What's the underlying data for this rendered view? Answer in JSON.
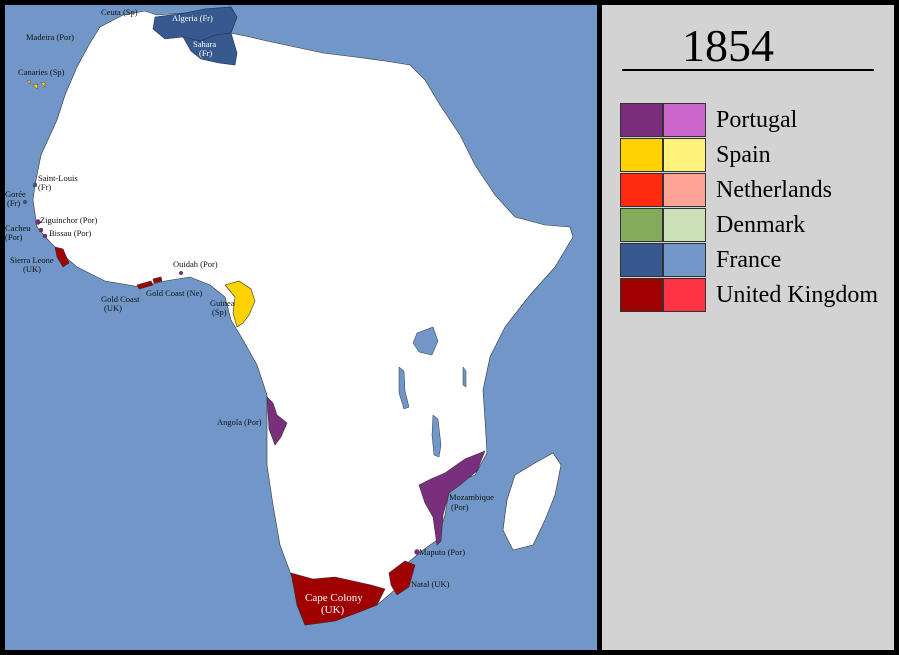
{
  "title": "1854",
  "legend": [
    {
      "name": "Portugal",
      "dark": "#7a2f7e",
      "light": "#cc66cc"
    },
    {
      "name": "Spain",
      "dark": "#ffd200",
      "light": "#fff27a"
    },
    {
      "name": "Netherlands",
      "dark": "#ff2a0f",
      "light": "#ffa494"
    },
    {
      "name": "Denmark",
      "dark": "#82ab5c",
      "light": "#cbe0b6"
    },
    {
      "name": "France",
      "dark": "#37598f",
      "light": "#7197c8"
    },
    {
      "name": "United Kingdom",
      "dark": "#a00000",
      "light": "#ff3344"
    }
  ],
  "colors": {
    "ocean": "#7197c8",
    "land": "#ffffff"
  },
  "labels": {
    "ceuta": "Ceuta (Sp)",
    "algeria": "Algeria (Fr)",
    "sahara": "Sahara",
    "sahara2": "(Fr)",
    "madeira": "Madeira (Por)",
    "canaries": "Canaries (Sp)",
    "saint_louis": "Saint-Louis",
    "saint_louis2": "(Fr)",
    "goree": "Gorée",
    "goree2": "(Fr)",
    "ziguinchor": "Ziguinchor (Por)",
    "cacheu": "Cacheu",
    "cacheu2": "(Por)",
    "bissau": "Bissau (Por)",
    "sierra_leone": "Sierra Leone",
    "sierra_leone2": "(UK)",
    "ouidah": "Ouidah (Por)",
    "gold_coast_ne": "Gold Coast (Ne)",
    "gold_coast_uk": "Gold Coast",
    "gold_coast_uk2": "(UK)",
    "guinea": "Guinea",
    "guinea2": "(Sp)",
    "angola": "Angola (Por)",
    "mozambique": "Mozambique",
    "mozambique2": "(Por)",
    "maputo": "Maputo (Por)",
    "natal": "Natal (UK)",
    "cape_colony": "Cape Colony",
    "cape_colony2": "(UK)"
  }
}
